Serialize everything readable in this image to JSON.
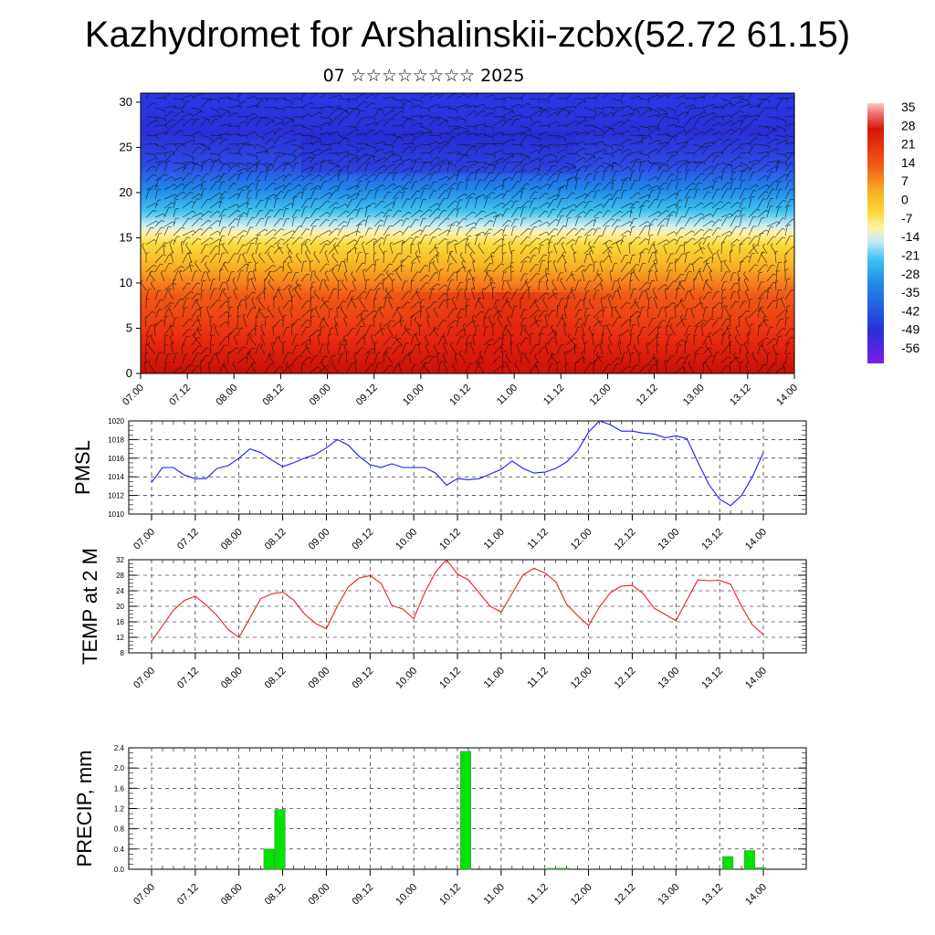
{
  "header": {
    "title": "Kazhydromet for Arshalinskii-zcbx(52.72 61.15)",
    "subtitle": "07 ☆☆☆☆☆☆☆☆ 2025"
  },
  "time_labels": [
    "07.00",
    "07.12",
    "08.00",
    "08.12",
    "09.00",
    "09.12",
    "10.00",
    "10.12",
    "11.00",
    "11.12",
    "12.00",
    "12.12",
    "13.00",
    "13.12",
    "14.00"
  ],
  "colorbar": {
    "labels": [
      "35",
      "28",
      "21",
      "14",
      "7",
      "0",
      "-7",
      "-14",
      "-21",
      "-28",
      "-35",
      "-42",
      "-49",
      "-56"
    ]
  },
  "chart_data": [
    {
      "type": "heatmap",
      "name": "temperature-wind-cross-section",
      "x": [
        "07.00",
        "07.12",
        "08.00",
        "08.12",
        "09.00",
        "09.12",
        "10.00",
        "10.12",
        "11.00",
        "11.12",
        "12.00",
        "12.12",
        "13.00",
        "13.12",
        "14.00"
      ],
      "y_ticks": [
        0,
        5,
        10,
        15,
        20,
        25,
        30
      ],
      "ylim": [
        0,
        31
      ],
      "color_scale": [
        "35",
        "28",
        "21",
        "14",
        "7",
        "0",
        "-7",
        "-14",
        "-21",
        "-28",
        "-35",
        "-42",
        "-49",
        "-56"
      ],
      "colors": {
        "warm": "#e8180a",
        "mid": "#f7c520",
        "zero": "#fde98a",
        "cold": "#3a3cf0"
      }
    },
    {
      "type": "line",
      "ylabel": "PMSL",
      "ylim": [
        1010,
        1020
      ],
      "y_ticks": [
        "1010",
        "1012",
        "1014",
        "1016",
        "1018",
        "1020"
      ],
      "color": "#1a1aff",
      "values": [
        1013.4,
        1015.0,
        1015.0,
        1014.2,
        1013.8,
        1013.8,
        1014.9,
        1015.2,
        1016.0,
        1017.0,
        1016.6,
        1015.8,
        1015.1,
        1015.5,
        1016.0,
        1016.4,
        1017.1,
        1018.0,
        1017.4,
        1016.2,
        1015.3,
        1015.0,
        1015.4,
        1015.0,
        1015.0,
        1015.0,
        1014.4,
        1013.1,
        1013.8,
        1013.7,
        1013.8,
        1014.3,
        1014.8,
        1015.7,
        1014.9,
        1014.4,
        1014.5,
        1014.9,
        1015.6,
        1016.8,
        1018.8,
        1020.0,
        1019.6,
        1018.9,
        1018.9,
        1018.7,
        1018.6,
        1018.2,
        1018.4,
        1018.1,
        1015.6,
        1013.2,
        1011.6,
        1010.9,
        1012.0,
        1014.0,
        1016.6
      ]
    },
    {
      "type": "line",
      "ylabel": "TEMP at 2 M",
      "ylim": [
        8,
        32
      ],
      "y_ticks": [
        "8",
        "12",
        "16",
        "20",
        "24",
        "28",
        "32"
      ],
      "color": "#e8201c",
      "values": [
        11,
        15,
        19,
        21.5,
        22.6,
        20.3,
        17.6,
        14,
        12,
        17,
        22,
        23.2,
        23.7,
        21.6,
        18,
        15.6,
        14.2,
        20,
        25,
        27.3,
        27.9,
        25.9,
        20.2,
        19.3,
        16.8,
        23.5,
        28.9,
        32,
        28.3,
        26.8,
        23.4,
        20,
        18.5,
        23.3,
        28.1,
        29.8,
        28.6,
        26.3,
        20.5,
        17.6,
        15,
        19.8,
        23.5,
        25.2,
        25.4,
        23.3,
        19.5,
        17.9,
        16.3,
        21.6,
        26.8,
        26.6,
        26.7,
        25.7,
        20,
        15.2,
        12.7
      ]
    },
    {
      "type": "bar",
      "ylabel": "PRECIP, mm",
      "ylim": [
        0,
        2.4
      ],
      "y_ticks": [
        "0.0",
        "0.4",
        "0.8",
        "1.2",
        "1.6",
        "2.0",
        "2.4"
      ],
      "color": "#00e400",
      "values": [
        0,
        0,
        0,
        0,
        0,
        0,
        0,
        0,
        0,
        0,
        0.4,
        1.18,
        0,
        0,
        0,
        0,
        0,
        0,
        0,
        0,
        0,
        0,
        0,
        0,
        0,
        0,
        0,
        0,
        2.33,
        0,
        0,
        0,
        0,
        0,
        0,
        0,
        0.02,
        0.02,
        0,
        0,
        0,
        0,
        0,
        0,
        0,
        0,
        0,
        0,
        0,
        0,
        0,
        0,
        0.25,
        0,
        0.37,
        0.03
      ]
    }
  ]
}
